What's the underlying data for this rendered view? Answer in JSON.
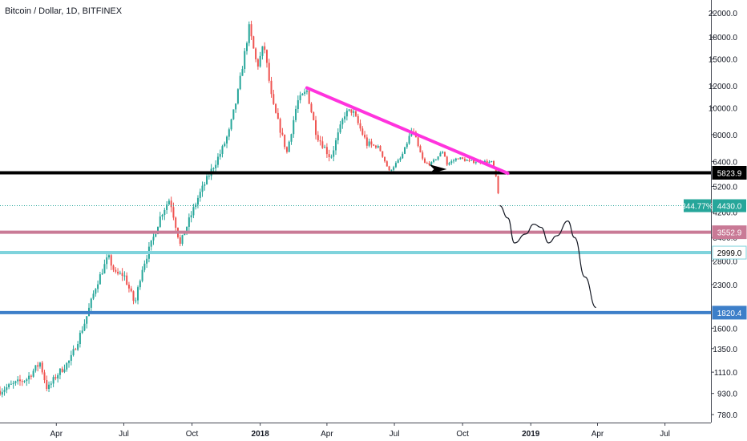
{
  "header": {
    "title": "Bitcoin / Dollar, 1D, BITFINEX"
  },
  "chart_data": {
    "type": "candlestick",
    "y_scale": "log",
    "y_ticks": [
      "22000.0",
      "18000.0",
      "15000.0",
      "12000.0",
      "10000.0",
      "8000.0",
      "6400.0",
      "5200.0",
      "4200.0",
      "3400.0",
      "2800.0",
      "2300.0",
      "1600.0",
      "1350.0",
      "1110.0",
      "930.0",
      "780.0"
    ],
    "x_ticks": [
      "Apr",
      "Jul",
      "Oct",
      "2018",
      "Apr",
      "Jul",
      "Oct",
      "2019",
      "Apr",
      "Jul"
    ],
    "x_range": [
      "2017-01-15",
      "2019-09-01"
    ],
    "y_range": [
      730,
      24500
    ],
    "current_price": {
      "label": "4430.0",
      "percent_label": "344.77%",
      "value": 4430,
      "color": "#26a69a"
    },
    "horizontal_levels": [
      {
        "label": "5823.9",
        "value": 5823.9,
        "color": "#000000",
        "label_bg": "#000000",
        "label_color": "#ffffff"
      },
      {
        "label": "3552.9",
        "value": 3552.9,
        "color": "#c97a96",
        "label_bg": "#c97a96",
        "label_color": "#ffffff"
      },
      {
        "label": "2999.0",
        "value": 2999.0,
        "color": "#7fd3dc",
        "label_bg": "#ffffff",
        "label_color": "#000000"
      },
      {
        "label": "1820.4",
        "value": 1820.4,
        "color": "#3d7fc9",
        "label_bg": "#3d7fc9",
        "label_color": "#ffffff"
      }
    ],
    "trendline": {
      "color": "#ff33dd",
      "start": [
        "2018-03-05",
        11800
      ],
      "end": [
        "2018-12-01",
        5800
      ]
    },
    "arrow_annotation": {
      "date": "2018-09-01",
      "price": 6000,
      "color": "#000000"
    },
    "projection": {
      "color": "#131722",
      "points": [
        [
          "2018-11-20",
          4430
        ],
        [
          "2018-12-01",
          4000
        ],
        [
          "2018-12-10",
          3250
        ],
        [
          "2018-12-25",
          3500
        ],
        [
          "2019-01-05",
          3800
        ],
        [
          "2019-01-15",
          3700
        ],
        [
          "2019-01-25",
          3250
        ],
        [
          "2019-02-05",
          3450
        ],
        [
          "2019-02-20",
          3900
        ],
        [
          "2019-03-01",
          3400
        ],
        [
          "2019-03-15",
          2450
        ],
        [
          "2019-03-30",
          1900
        ]
      ]
    },
    "price_anchors": [
      [
        "2017-01-15",
        950
      ],
      [
        "2017-02-01",
        1000
      ],
      [
        "2017-02-20",
        1050
      ],
      [
        "2017-03-10",
        1200
      ],
      [
        "2017-03-20",
        960
      ],
      [
        "2017-04-01",
        1080
      ],
      [
        "2017-04-20",
        1230
      ],
      [
        "2017-05-10",
        1700
      ],
      [
        "2017-05-25",
        2300
      ],
      [
        "2017-06-10",
        2900
      ],
      [
        "2017-06-20",
        2500
      ],
      [
        "2017-07-01",
        2500
      ],
      [
        "2017-07-16",
        1950
      ],
      [
        "2017-07-25",
        2600
      ],
      [
        "2017-08-10",
        3400
      ],
      [
        "2017-08-20",
        4100
      ],
      [
        "2017-09-01",
        4700
      ],
      [
        "2017-09-15",
        3200
      ],
      [
        "2017-09-25",
        3800
      ],
      [
        "2017-10-10",
        4800
      ],
      [
        "2017-10-25",
        5800
      ],
      [
        "2017-11-10",
        7000
      ],
      [
        "2017-11-20",
        8200
      ],
      [
        "2017-12-01",
        11000
      ],
      [
        "2017-12-17",
        19500
      ],
      [
        "2017-12-28",
        14000
      ],
      [
        "2018-01-06",
        17000
      ],
      [
        "2018-01-17",
        10500
      ],
      [
        "2018-02-06",
        6900
      ],
      [
        "2018-02-20",
        10500
      ],
      [
        "2018-03-05",
        11500
      ],
      [
        "2018-03-18",
        8000
      ],
      [
        "2018-04-06",
        6600
      ],
      [
        "2018-04-25",
        9500
      ],
      [
        "2018-05-05",
        9800
      ],
      [
        "2018-05-25",
        7400
      ],
      [
        "2018-06-10",
        7200
      ],
      [
        "2018-06-24",
        5900
      ],
      [
        "2018-07-10",
        6600
      ],
      [
        "2018-07-25",
        8300
      ],
      [
        "2018-08-10",
        6300
      ],
      [
        "2018-08-20",
        6300
      ],
      [
        "2018-09-05",
        7000
      ],
      [
        "2018-09-10",
        6250
      ],
      [
        "2018-09-25",
        6600
      ],
      [
        "2018-10-10",
        6400
      ],
      [
        "2018-10-25",
        6400
      ],
      [
        "2018-11-10",
        6350
      ],
      [
        "2018-11-15",
        5600
      ],
      [
        "2018-11-20",
        4430
      ]
    ]
  }
}
